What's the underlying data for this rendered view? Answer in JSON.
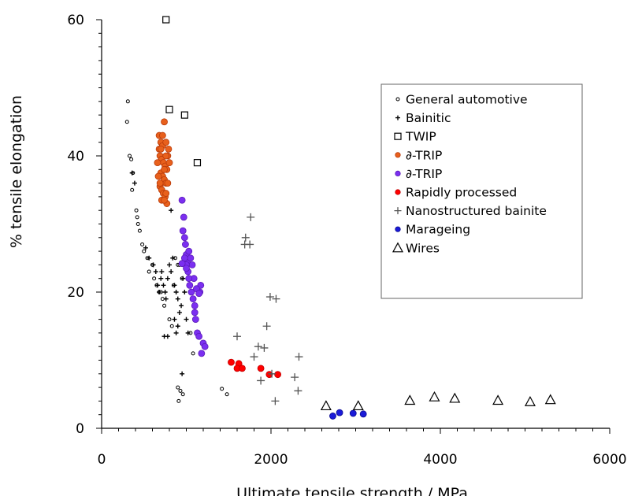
{
  "chart_data": {
    "type": "scatter",
    "title": "",
    "xlabel": "Ultimate tensile strength / MPa",
    "ylabel": "% tensile elongation",
    "xlim": [
      0,
      6000
    ],
    "ylim": [
      0,
      60
    ],
    "xticks": [
      0,
      2000,
      4000,
      6000
    ],
    "yticks": [
      0,
      20,
      40,
      60
    ],
    "xtick_labels": [
      "0",
      "2000",
      "4000",
      "6000"
    ],
    "ytick_labels": [
      "0",
      "20",
      "40",
      "60"
    ],
    "legend_position": "top-right",
    "grid": false,
    "series": [
      {
        "name": "General automotive",
        "marker": "open-small-circle",
        "color": "#000000",
        "points": [
          [
            310,
            48
          ],
          [
            300,
            45
          ],
          [
            330,
            40
          ],
          [
            350,
            39.5
          ],
          [
            370,
            37.5
          ],
          [
            360,
            35
          ],
          [
            410,
            32
          ],
          [
            420,
            31
          ],
          [
            430,
            30
          ],
          [
            450,
            29
          ],
          [
            480,
            27
          ],
          [
            500,
            26
          ],
          [
            540,
            25
          ],
          [
            560,
            23
          ],
          [
            600,
            24
          ],
          [
            620,
            22
          ],
          [
            650,
            21
          ],
          [
            680,
            20
          ],
          [
            700,
            20
          ],
          [
            720,
            19
          ],
          [
            740,
            18
          ],
          [
            800,
            16
          ],
          [
            830,
            15
          ],
          [
            850,
            21
          ],
          [
            870,
            25
          ],
          [
            900,
            24
          ],
          [
            920,
            24
          ],
          [
            950,
            22
          ],
          [
            1050,
            14
          ],
          [
            1080,
            11
          ],
          [
            900,
            6
          ],
          [
            910,
            4
          ],
          [
            930,
            5.5
          ],
          [
            960,
            5
          ],
          [
            1420,
            5.8
          ],
          [
            1480,
            5
          ]
        ]
      },
      {
        "name": "Bainitic",
        "marker": "small-plus",
        "color": "#000000",
        "points": [
          [
            360,
            37.5
          ],
          [
            390,
            36
          ],
          [
            520,
            26.5
          ],
          [
            560,
            25
          ],
          [
            610,
            24
          ],
          [
            640,
            23
          ],
          [
            660,
            21
          ],
          [
            680,
            20
          ],
          [
            700,
            22
          ],
          [
            710,
            23
          ],
          [
            730,
            21
          ],
          [
            750,
            20
          ],
          [
            760,
            19
          ],
          [
            780,
            22
          ],
          [
            800,
            24
          ],
          [
            820,
            23
          ],
          [
            840,
            25
          ],
          [
            860,
            21
          ],
          [
            880,
            20
          ],
          [
            900,
            19
          ],
          [
            920,
            17
          ],
          [
            940,
            18
          ],
          [
            960,
            22
          ],
          [
            980,
            20
          ],
          [
            1000,
            16
          ],
          [
            1020,
            14
          ],
          [
            900,
            15
          ],
          [
            860,
            16
          ],
          [
            880,
            14
          ],
          [
            780,
            13.5
          ],
          [
            740,
            13.5
          ],
          [
            820,
            32
          ],
          [
            950,
            8
          ]
        ]
      },
      {
        "name": "TWIP",
        "marker": "open-square",
        "color": "#000000",
        "points": [
          [
            760,
            60
          ],
          [
            800,
            46.8
          ],
          [
            980,
            46
          ],
          [
            1130,
            39
          ]
        ]
      },
      {
        "name": "∂-TRIP",
        "marker": "filled-circle",
        "color": "#e8601c",
        "stroke": "#b83a0a",
        "points": [
          [
            680,
            43
          ],
          [
            700,
            42
          ],
          [
            720,
            41.5
          ],
          [
            740,
            45
          ],
          [
            760,
            42
          ],
          [
            690,
            40
          ],
          [
            710,
            39.5
          ],
          [
            730,
            39
          ],
          [
            750,
            38.5
          ],
          [
            770,
            38
          ],
          [
            700,
            37.5
          ],
          [
            720,
            37
          ],
          [
            740,
            36.5
          ],
          [
            760,
            36
          ],
          [
            690,
            35.5
          ],
          [
            710,
            35
          ],
          [
            730,
            34.5
          ],
          [
            750,
            34
          ],
          [
            770,
            33
          ],
          [
            680,
            41
          ],
          [
            700,
            41
          ],
          [
            780,
            40
          ],
          [
            660,
            39
          ],
          [
            670,
            37
          ],
          [
            690,
            36
          ],
          [
            710,
            33.5
          ],
          [
            740,
            33.5
          ],
          [
            760,
            34.5
          ],
          [
            780,
            36
          ],
          [
            800,
            39
          ],
          [
            790,
            41
          ],
          [
            720,
            43
          ],
          [
            760,
            40
          ],
          [
            740,
            38
          ]
        ]
      },
      {
        "name": "∂-TRIP",
        "marker": "filled-circle",
        "color": "#7b2ff0",
        "stroke": "#5a1bb8",
        "points": [
          [
            950,
            33.5
          ],
          [
            970,
            31
          ],
          [
            960,
            29
          ],
          [
            980,
            28
          ],
          [
            990,
            27
          ],
          [
            1000,
            25.5
          ],
          [
            1010,
            24.5
          ],
          [
            1030,
            26
          ],
          [
            1050,
            25
          ],
          [
            1070,
            24
          ],
          [
            1090,
            22
          ],
          [
            1020,
            23
          ],
          [
            1040,
            21
          ],
          [
            1060,
            20
          ],
          [
            1080,
            19
          ],
          [
            1100,
            17
          ],
          [
            1110,
            16
          ],
          [
            1130,
            14
          ],
          [
            1150,
            13.5
          ],
          [
            1160,
            20
          ],
          [
            1170,
            21
          ],
          [
            1180,
            11
          ],
          [
            1200,
            12.5
          ],
          [
            1220,
            12
          ],
          [
            980,
            25
          ],
          [
            1000,
            24
          ],
          [
            1100,
            18
          ],
          [
            1120,
            20.5
          ],
          [
            1150,
            19.8
          ],
          [
            950,
            24.2
          ],
          [
            1000,
            23.5
          ],
          [
            1030,
            22
          ]
        ]
      },
      {
        "name": "Rapidly processed",
        "marker": "filled-circle",
        "color": "#ff0000",
        "stroke": "#c00000",
        "points": [
          [
            1530,
            9.7
          ],
          [
            1620,
            9.5
          ],
          [
            1600,
            8.8
          ],
          [
            1660,
            8.8
          ],
          [
            1880,
            8.8
          ],
          [
            1980,
            7.9
          ],
          [
            2080,
            7.9
          ]
        ]
      },
      {
        "name": "Nanostructured bainite",
        "marker": "plus",
        "color": "#555555",
        "points": [
          [
            1760,
            31
          ],
          [
            1700,
            28
          ],
          [
            1690,
            27
          ],
          [
            1750,
            27
          ],
          [
            1600,
            13.5
          ],
          [
            1850,
            12
          ],
          [
            1920,
            11.8
          ],
          [
            1800,
            10.5
          ],
          [
            1950,
            15
          ],
          [
            1990,
            19.3
          ],
          [
            2060,
            19
          ],
          [
            1880,
            7
          ],
          [
            2010,
            8
          ],
          [
            2280,
            7.5
          ],
          [
            2330,
            10.5
          ],
          [
            2320,
            5.5
          ],
          [
            2050,
            4
          ]
        ]
      },
      {
        "name": "Marageing",
        "marker": "filled-circle",
        "color": "#1a1ad8",
        "stroke": "#0a0a90",
        "points": [
          [
            2730,
            1.8
          ],
          [
            2810,
            2.3
          ],
          [
            2970,
            2.2
          ],
          [
            3090,
            2.1
          ]
        ]
      },
      {
        "name": "Wires",
        "marker": "open-triangle",
        "color": "#000000",
        "points": [
          [
            2650,
            3.3
          ],
          [
            3030,
            3.3
          ],
          [
            3640,
            4.1
          ],
          [
            3930,
            4.6
          ],
          [
            4170,
            4.4
          ],
          [
            4680,
            4.1
          ],
          [
            5060,
            3.9
          ],
          [
            5300,
            4.2
          ]
        ]
      }
    ]
  }
}
